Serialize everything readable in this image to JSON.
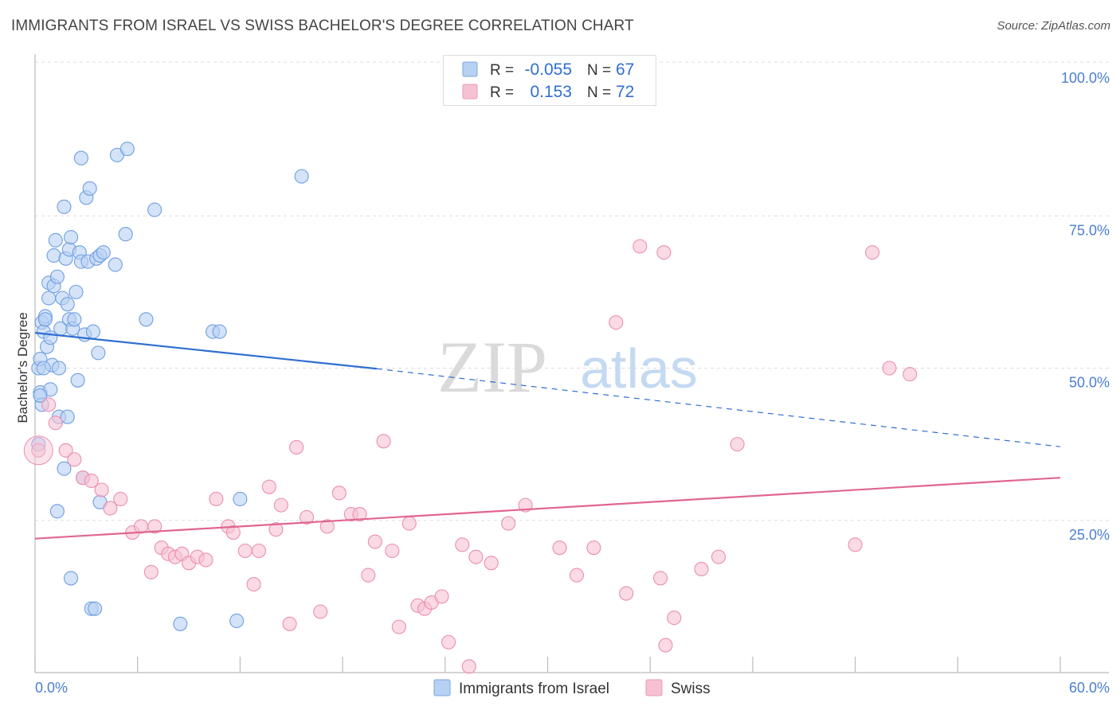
{
  "title": "IMMIGRANTS FROM ISRAEL VS SWISS BACHELOR'S DEGREE CORRELATION CHART",
  "source": "Source: ZipAtlas.com",
  "watermark": {
    "zip": "ZIP",
    "atlas": "atlas"
  },
  "colors": {
    "blue": "#2f6fd0",
    "blue_fill": "#b7d1f3",
    "pink": "#e0668f",
    "pink_fill": "#f6c2d3",
    "axis_text": "#4a7fd0",
    "grid": "#dddddd"
  },
  "legend_stats": [
    {
      "r_label": "R =",
      "r_value": "-0.055",
      "n_label": "N =",
      "n_value": "67"
    },
    {
      "r_label": "R =",
      "r_value": "0.153",
      "n_label": "N =",
      "n_value": "72"
    }
  ],
  "chart_data": {
    "type": "scatter",
    "title": "IMMIGRANTS FROM ISRAEL VS SWISS BACHELOR'S DEGREE CORRELATION CHART",
    "xlabel": "",
    "ylabel": "Bachelor's Degree",
    "xlim": [
      0,
      60
    ],
    "ylim": [
      0,
      100
    ],
    "x_tick_labels": [
      "0.0%",
      "60.0%"
    ],
    "y_tick_labels": [
      "100.0%",
      "75.0%",
      "50.0%",
      "25.0%"
    ],
    "y_ticks": [
      100,
      75,
      50,
      25
    ],
    "grid": true,
    "legend_position": "bottom",
    "series": [
      {
        "name": "Immigrants from Israel",
        "color": "#2f6fd0",
        "trend": {
          "x": [
            0,
            20
          ],
          "y": [
            55.8,
            49.9
          ],
          "dashed_to_x": 60,
          "dashed_to_y": 37.1
        },
        "points": [
          [
            0.2,
            50.0
          ],
          [
            0.3,
            46.0
          ],
          [
            0.3,
            51.5
          ],
          [
            0.4,
            57.5
          ],
          [
            0.5,
            56.0
          ],
          [
            0.6,
            58.5
          ],
          [
            0.7,
            53.5
          ],
          [
            0.8,
            61.5
          ],
          [
            0.8,
            64.0
          ],
          [
            0.9,
            55.0
          ],
          [
            0.9,
            46.5
          ],
          [
            1.0,
            50.5
          ],
          [
            1.1,
            63.5
          ],
          [
            1.1,
            68.5
          ],
          [
            1.2,
            71.0
          ],
          [
            1.3,
            65.0
          ],
          [
            1.4,
            50.0
          ],
          [
            1.5,
            56.5
          ],
          [
            1.6,
            61.5
          ],
          [
            1.7,
            33.5
          ],
          [
            1.7,
            76.5
          ],
          [
            1.8,
            68.0
          ],
          [
            1.9,
            60.5
          ],
          [
            2.0,
            69.5
          ],
          [
            2.0,
            58.0
          ],
          [
            2.1,
            71.5
          ],
          [
            2.2,
            56.5
          ],
          [
            2.3,
            58.0
          ],
          [
            2.4,
            62.5
          ],
          [
            2.5,
            48.0
          ],
          [
            2.6,
            69.0
          ],
          [
            2.7,
            67.5
          ],
          [
            2.7,
            84.5
          ],
          [
            2.8,
            32.0
          ],
          [
            2.9,
            55.5
          ],
          [
            3.0,
            78.0
          ],
          [
            3.1,
            67.5
          ],
          [
            3.2,
            79.5
          ],
          [
            3.4,
            56.0
          ],
          [
            3.6,
            68.0
          ],
          [
            3.7,
            52.5
          ],
          [
            3.8,
            68.5
          ],
          [
            4.0,
            69.0
          ],
          [
            4.7,
            67.0
          ],
          [
            4.8,
            85.0
          ],
          [
            5.3,
            72.0
          ],
          [
            5.4,
            86.0
          ],
          [
            6.5,
            58.0
          ],
          [
            7.0,
            76.0
          ],
          [
            10.4,
            56.0
          ],
          [
            10.8,
            56.0
          ],
          [
            15.6,
            81.5
          ],
          [
            0.2,
            37.5
          ],
          [
            0.4,
            44.0
          ],
          [
            0.5,
            50.0
          ],
          [
            1.4,
            42.0
          ],
          [
            1.9,
            42.0
          ],
          [
            1.3,
            26.5
          ],
          [
            3.8,
            28.0
          ],
          [
            2.1,
            15.5
          ],
          [
            3.3,
            10.5
          ],
          [
            3.5,
            10.5
          ],
          [
            8.5,
            8.0
          ],
          [
            11.8,
            8.5
          ],
          [
            12.0,
            28.5
          ],
          [
            0.3,
            45.5
          ],
          [
            0.6,
            58.0
          ]
        ]
      },
      {
        "name": "Swiss",
        "color": "#e0668f",
        "trend": {
          "x": [
            0,
            60
          ],
          "y": [
            22.0,
            32.0
          ]
        },
        "points": [
          [
            0.2,
            36.5
          ],
          [
            0.8,
            44.0
          ],
          [
            1.2,
            41.0
          ],
          [
            1.8,
            36.5
          ],
          [
            2.3,
            35.0
          ],
          [
            2.8,
            32.0
          ],
          [
            3.3,
            31.5
          ],
          [
            3.9,
            30.0
          ],
          [
            4.4,
            27.0
          ],
          [
            5.0,
            28.5
          ],
          [
            5.7,
            23.0
          ],
          [
            6.2,
            24.0
          ],
          [
            6.8,
            16.5
          ],
          [
            7.4,
            20.5
          ],
          [
            7.8,
            19.5
          ],
          [
            8.2,
            19.0
          ],
          [
            8.6,
            19.5
          ],
          [
            9.0,
            18.0
          ],
          [
            9.5,
            19.0
          ],
          [
            10.0,
            18.5
          ],
          [
            10.6,
            28.5
          ],
          [
            11.3,
            24.0
          ],
          [
            11.6,
            23.0
          ],
          [
            12.3,
            20.0
          ],
          [
            12.8,
            14.5
          ],
          [
            13.1,
            20.0
          ],
          [
            13.7,
            30.5
          ],
          [
            14.1,
            23.5
          ],
          [
            14.4,
            27.5
          ],
          [
            14.9,
            8.0
          ],
          [
            15.3,
            37.0
          ],
          [
            15.9,
            25.5
          ],
          [
            16.7,
            10.0
          ],
          [
            17.1,
            24.0
          ],
          [
            17.8,
            29.5
          ],
          [
            18.5,
            26.0
          ],
          [
            19.0,
            26.0
          ],
          [
            19.5,
            16.0
          ],
          [
            19.9,
            21.5
          ],
          [
            20.4,
            38.0
          ],
          [
            20.9,
            20.0
          ],
          [
            21.3,
            7.5
          ],
          [
            21.9,
            24.5
          ],
          [
            22.4,
            11.0
          ],
          [
            22.8,
            10.5
          ],
          [
            23.2,
            11.5
          ],
          [
            23.8,
            12.5
          ],
          [
            24.2,
            5.0
          ],
          [
            25.0,
            21.0
          ],
          [
            25.4,
            1.0
          ],
          [
            25.8,
            19.0
          ],
          [
            26.7,
            18.0
          ],
          [
            27.7,
            24.5
          ],
          [
            28.7,
            27.5
          ],
          [
            30.7,
            20.5
          ],
          [
            31.7,
            16.0
          ],
          [
            32.7,
            20.5
          ],
          [
            34.0,
            57.5
          ],
          [
            34.6,
            13.0
          ],
          [
            35.4,
            70.0
          ],
          [
            36.6,
            15.5
          ],
          [
            36.8,
            69.0
          ],
          [
            36.9,
            4.5
          ],
          [
            37.4,
            9.0
          ],
          [
            39.0,
            17.0
          ],
          [
            40.0,
            19.0
          ],
          [
            41.1,
            37.5
          ],
          [
            48.0,
            21.0
          ],
          [
            49.0,
            69.0
          ],
          [
            50.0,
            50.0
          ],
          [
            51.2,
            49.0
          ],
          [
            7.0,
            24.0
          ]
        ]
      }
    ]
  }
}
